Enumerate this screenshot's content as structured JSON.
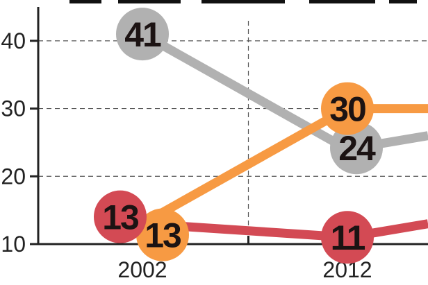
{
  "chart_data": {
    "type": "line",
    "x": [
      "2002",
      "2012"
    ],
    "ylim": [
      10,
      45
    ],
    "yticks": [
      10,
      20,
      30,
      40
    ],
    "grid": true,
    "series": [
      {
        "color": "#b1b1b1",
        "values": [
          41,
          24
        ],
        "labels": [
          "41",
          "24"
        ],
        "trend_beyond": 26
      },
      {
        "color": "#f79a43",
        "values": [
          13,
          30
        ],
        "labels": [
          "13",
          "30"
        ],
        "trend_beyond": 30
      },
      {
        "color": "#d34a54",
        "values": [
          13,
          11
        ],
        "labels": [
          "13",
          "11"
        ],
        "trend_beyond": 13
      }
    ]
  }
}
